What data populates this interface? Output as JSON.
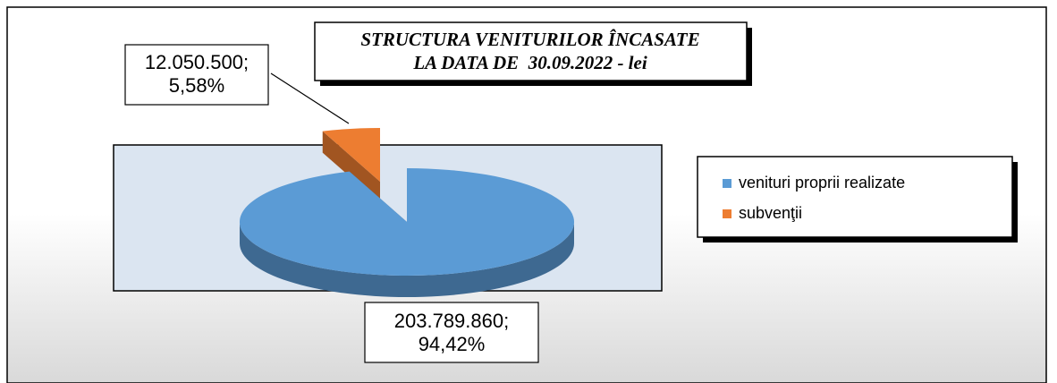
{
  "chart_data": {
    "type": "pie",
    "title": [
      "STRUCTURA VENITURILOR ÎNCASATE",
      "LA DATA DE  30.09.2022 - lei"
    ],
    "categories": [
      "venituri proprii realizate",
      "subvenţii"
    ],
    "values": [
      203789860,
      12050500
    ],
    "value_labels": [
      [
        "203.789.860;",
        "94,42%"
      ],
      [
        "12.050.500;",
        "5,58%"
      ]
    ],
    "colors": [
      "#5b9bd5",
      "#ed7d31"
    ],
    "legend": "right"
  }
}
